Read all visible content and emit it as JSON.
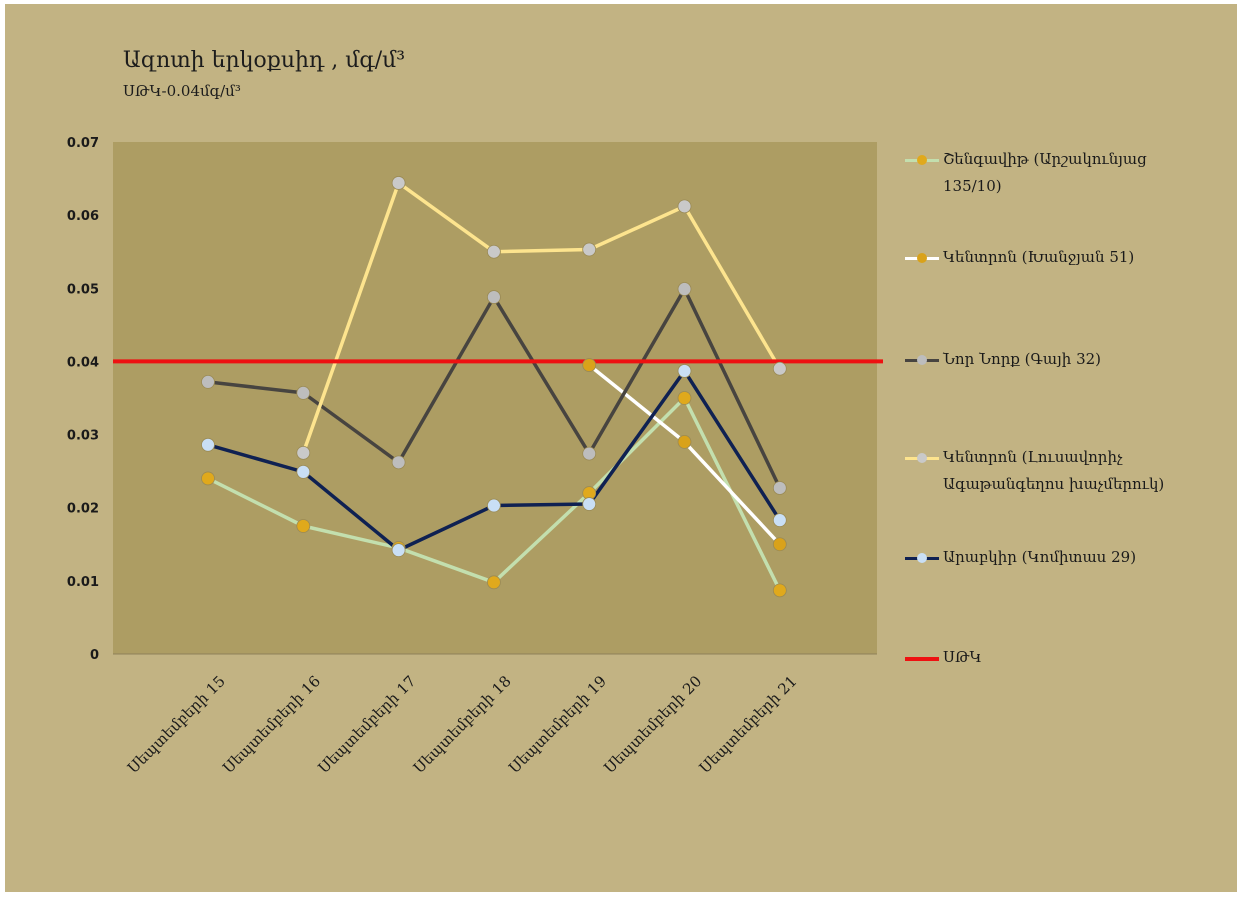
{
  "title": "Ազոտի երկօքսիդ , մգ/մ³",
  "subtitle": "ՍԹԿ-0.04մգ/մ³",
  "colors": {
    "background": "#c2b383",
    "plot_area": "#ad9d63",
    "limit_line": "#ee1111"
  },
  "chart_data": {
    "type": "line",
    "categories": [
      "Սեպտեմբերի 15",
      "Սեպտեմբերի 16",
      "Սեպտեմբերի 17",
      "Սեպտեմբերի 18",
      "Սեպտեմբերի 19",
      "Սեպտեմբերի 20",
      "Սեպտեմբերի 21"
    ],
    "ylim": [
      0,
      0.07
    ],
    "yticks": [
      0,
      0.01,
      0.02,
      0.03,
      0.04,
      0.05,
      0.06,
      0.07
    ],
    "ytick_labels": [
      "0",
      "0.01",
      "0.02",
      "0.03",
      "0.04",
      "0.05",
      "0.06",
      "0.07"
    ],
    "legend_position": "right",
    "grid": false,
    "series": [
      {
        "name": "Շենգավիթ (Արշակունյաց 135/10)",
        "legend_lines": [
          "Շենգավիթ (Արշակունյաց",
          "135/10)"
        ],
        "line_color": "#c3dfae",
        "marker_color": "#e0a91c",
        "values": [
          0.024,
          0.0175,
          0.0145,
          0.0098,
          0.022,
          0.035,
          0.0087
        ]
      },
      {
        "name": "Կենտրոն (Խանջյան 51)",
        "legend_lines": [
          "Կենտրոն (Խանջյան 51)"
        ],
        "line_color": "#ffffff",
        "marker_color": "#d9a21a",
        "values": [
          null,
          null,
          null,
          null,
          0.0395,
          0.029,
          0.015
        ]
      },
      {
        "name": "Նոր Նորք (Գայի 32)",
        "legend_lines": [
          "Նոր Նորք (Գայի 32)"
        ],
        "line_color": "#474440",
        "marker_color": "#bdbdbd",
        "values": [
          0.0372,
          0.0357,
          0.0262,
          0.0488,
          0.0274,
          0.0499,
          0.0227
        ]
      },
      {
        "name": "Կենտրոն (Լուսավորիչ Ագաթանգեղոս խաչմերուկ)",
        "legend_lines": [
          "Կենտրոն (Լուսավորիչ",
          "Ագաթանգեղոս խաչմերուկ)"
        ],
        "line_color": "#fde48e",
        "marker_color": "#c9c9c9",
        "values": [
          null,
          0.0275,
          0.0644,
          0.055,
          0.0553,
          0.0612,
          0.039
        ]
      },
      {
        "name": "Արաբկիր (Կոմիտաս 29)",
        "legend_lines": [
          "Արաբկիր (Կոմիտաս 29)"
        ],
        "line_color": "#0f2152",
        "marker_color": "#c9dff5",
        "values": [
          0.0286,
          0.0249,
          0.0142,
          0.0203,
          0.0205,
          0.0387,
          0.0183
        ]
      },
      {
        "name": "ՍԹԿ",
        "legend_lines": [
          "ՍԹԿ"
        ],
        "line_color": "#ee1111",
        "marker_color": null,
        "constant": 0.04
      }
    ]
  }
}
